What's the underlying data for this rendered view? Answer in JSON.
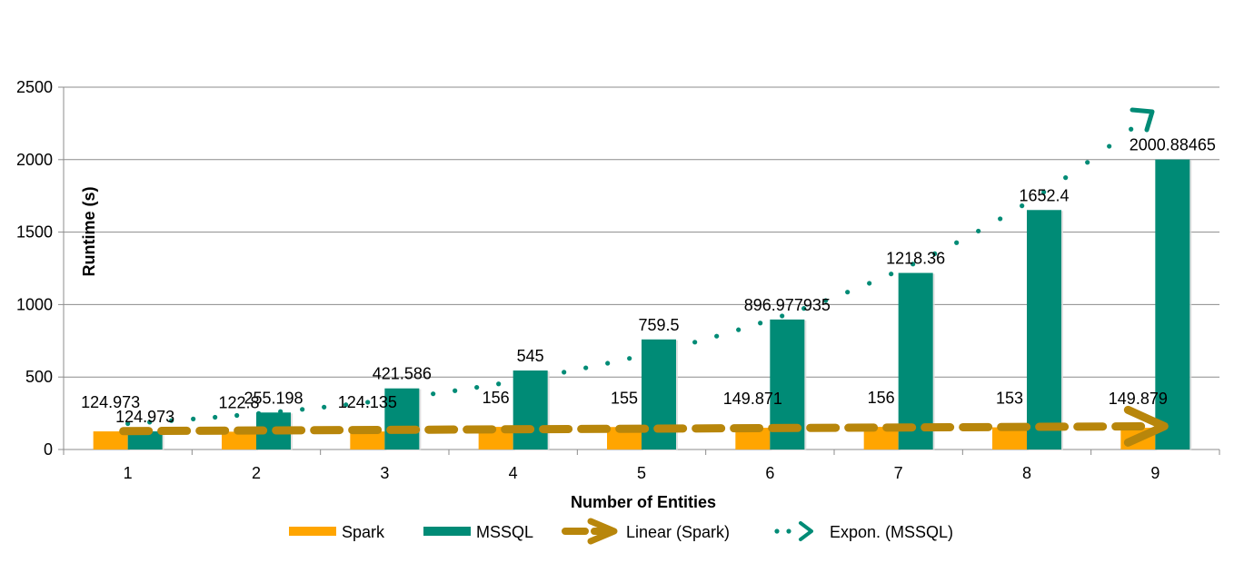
{
  "chart_data": {
    "type": "bar",
    "title": "",
    "xlabel": "Number of Entities",
    "ylabel": "Runtime (s)",
    "categories": [
      "1",
      "2",
      "3",
      "4",
      "5",
      "6",
      "7",
      "8",
      "9"
    ],
    "ylim": [
      0,
      2500
    ],
    "yticks": [
      0,
      500,
      1000,
      1500,
      2000,
      2500
    ],
    "grid": true,
    "legend_position": "bottom",
    "series": [
      {
        "name": "Spark",
        "color": "#ffa500",
        "values": [
          124.973,
          122.8,
          124.135,
          156,
          155,
          149.871,
          156,
          153,
          149.879
        ],
        "labels": [
          "124.973",
          "122.8",
          "124.135",
          "156",
          "155",
          "149.871",
          "156",
          "153",
          "149.879"
        ]
      },
      {
        "name": "MSSQL",
        "color": "#008b76",
        "values": [
          124.973,
          255.198,
          421.586,
          545,
          759.5,
          896.977935,
          1218.36,
          1652.4,
          2000.88465
        ],
        "labels": [
          "124.973",
          "255.198",
          "421.586",
          "545",
          "759.5",
          "896.977935",
          "1218.36",
          "1652.4",
          "2000.88465"
        ]
      }
    ],
    "trendlines": [
      {
        "name": "Linear (Spark)",
        "type": "linear",
        "of": "Spark",
        "color": "#b8860b",
        "style": "dashed"
      },
      {
        "name": "Expon. (MSSQL)",
        "type": "exponential",
        "of": "MSSQL",
        "color": "#008b76",
        "style": "dotted"
      }
    ]
  }
}
